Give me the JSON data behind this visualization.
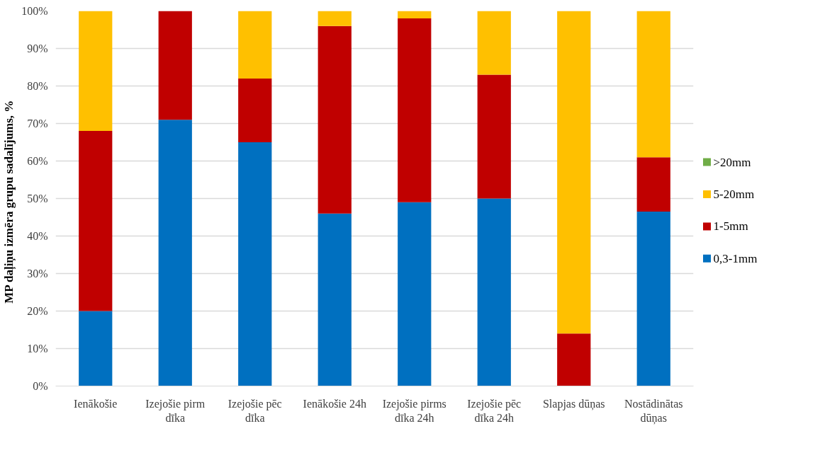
{
  "chart_data": {
    "type": "bar",
    "stacked": true,
    "ylabel": "MP daļiņu  izmēra grupu  sadalījums, %",
    "categories": [
      "Ienākošie",
      "Izejošie pirm dīka",
      "Izejošie pēc dīka",
      "Ienākošie 24h",
      "Izejošie pirms dīka 24h",
      "Izejošie pēc dīka 24h",
      "Slapjas dūņas",
      "Nostādinātas dūņas"
    ],
    "series": [
      {
        "name": "0,3-1mm",
        "color": "#0070c0",
        "values": [
          20,
          71,
          65,
          46,
          49,
          50,
          0,
          46.5
        ]
      },
      {
        "name": "1-5mm",
        "color": "#c00000",
        "values": [
          48,
          29,
          17,
          50,
          49,
          33,
          14,
          14.5
        ]
      },
      {
        "name": "5-20mm",
        "color": "#ffc000",
        "values": [
          32,
          0,
          18,
          4,
          2,
          17,
          86,
          39
        ]
      },
      {
        "name": ">20mm",
        "color": "#70ad47",
        "values": [
          0,
          0,
          0,
          0,
          0,
          0,
          0,
          0
        ]
      }
    ],
    "ylim": [
      0,
      100
    ],
    "yticks": [
      {
        "value": 0,
        "label": "0%"
      },
      {
        "value": 10,
        "label": "10%"
      },
      {
        "value": 20,
        "label": "20%"
      },
      {
        "value": 30,
        "label": "30%"
      },
      {
        "value": 40,
        "label": "40%"
      },
      {
        "value": 50,
        "label": "50%"
      },
      {
        "value": 60,
        "label": "60%"
      },
      {
        "value": 70,
        "label": "70%"
      },
      {
        "value": 80,
        "label": "80%"
      },
      {
        "value": 90,
        "label": "90%"
      },
      {
        "value": 100,
        "label": "100%"
      }
    ],
    "grid": "y",
    "legend": "right"
  }
}
